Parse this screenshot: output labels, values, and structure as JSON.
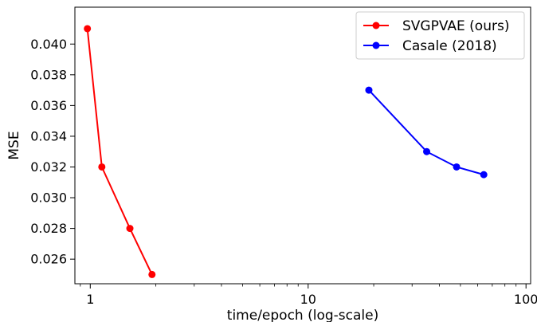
{
  "chart_data": {
    "type": "line",
    "xlabel": "time/epoch (log-scale)",
    "ylabel": "MSE",
    "x_scale": "log",
    "xlim": [
      0.85,
      105
    ],
    "ylim": [
      0.0244,
      0.0424
    ],
    "x_ticks": [
      {
        "value": 1,
        "label": "1"
      },
      {
        "value": 10,
        "label": "10"
      },
      {
        "value": 100,
        "label": "100"
      }
    ],
    "y_ticks": [
      {
        "value": 0.026,
        "label": "0.026"
      },
      {
        "value": 0.028,
        "label": "0.028"
      },
      {
        "value": 0.03,
        "label": "0.030"
      },
      {
        "value": 0.032,
        "label": "0.032"
      },
      {
        "value": 0.034,
        "label": "0.034"
      },
      {
        "value": 0.036,
        "label": "0.036"
      },
      {
        "value": 0.038,
        "label": "0.038"
      },
      {
        "value": 0.04,
        "label": "0.040"
      }
    ],
    "grid": false,
    "legend_position": "top-right",
    "series": [
      {
        "name": "SVGPVAE (ours)",
        "color": "#ff0000",
        "points": [
          {
            "x": 0.97,
            "y": 0.041
          },
          {
            "x": 1.13,
            "y": 0.032
          },
          {
            "x": 1.52,
            "y": 0.028
          },
          {
            "x": 1.92,
            "y": 0.025
          }
        ]
      },
      {
        "name": "Casale (2018)",
        "color": "#0000ff",
        "points": [
          {
            "x": 19,
            "y": 0.037
          },
          {
            "x": 35,
            "y": 0.033
          },
          {
            "x": 48,
            "y": 0.032
          },
          {
            "x": 64,
            "y": 0.0315
          }
        ]
      }
    ]
  }
}
